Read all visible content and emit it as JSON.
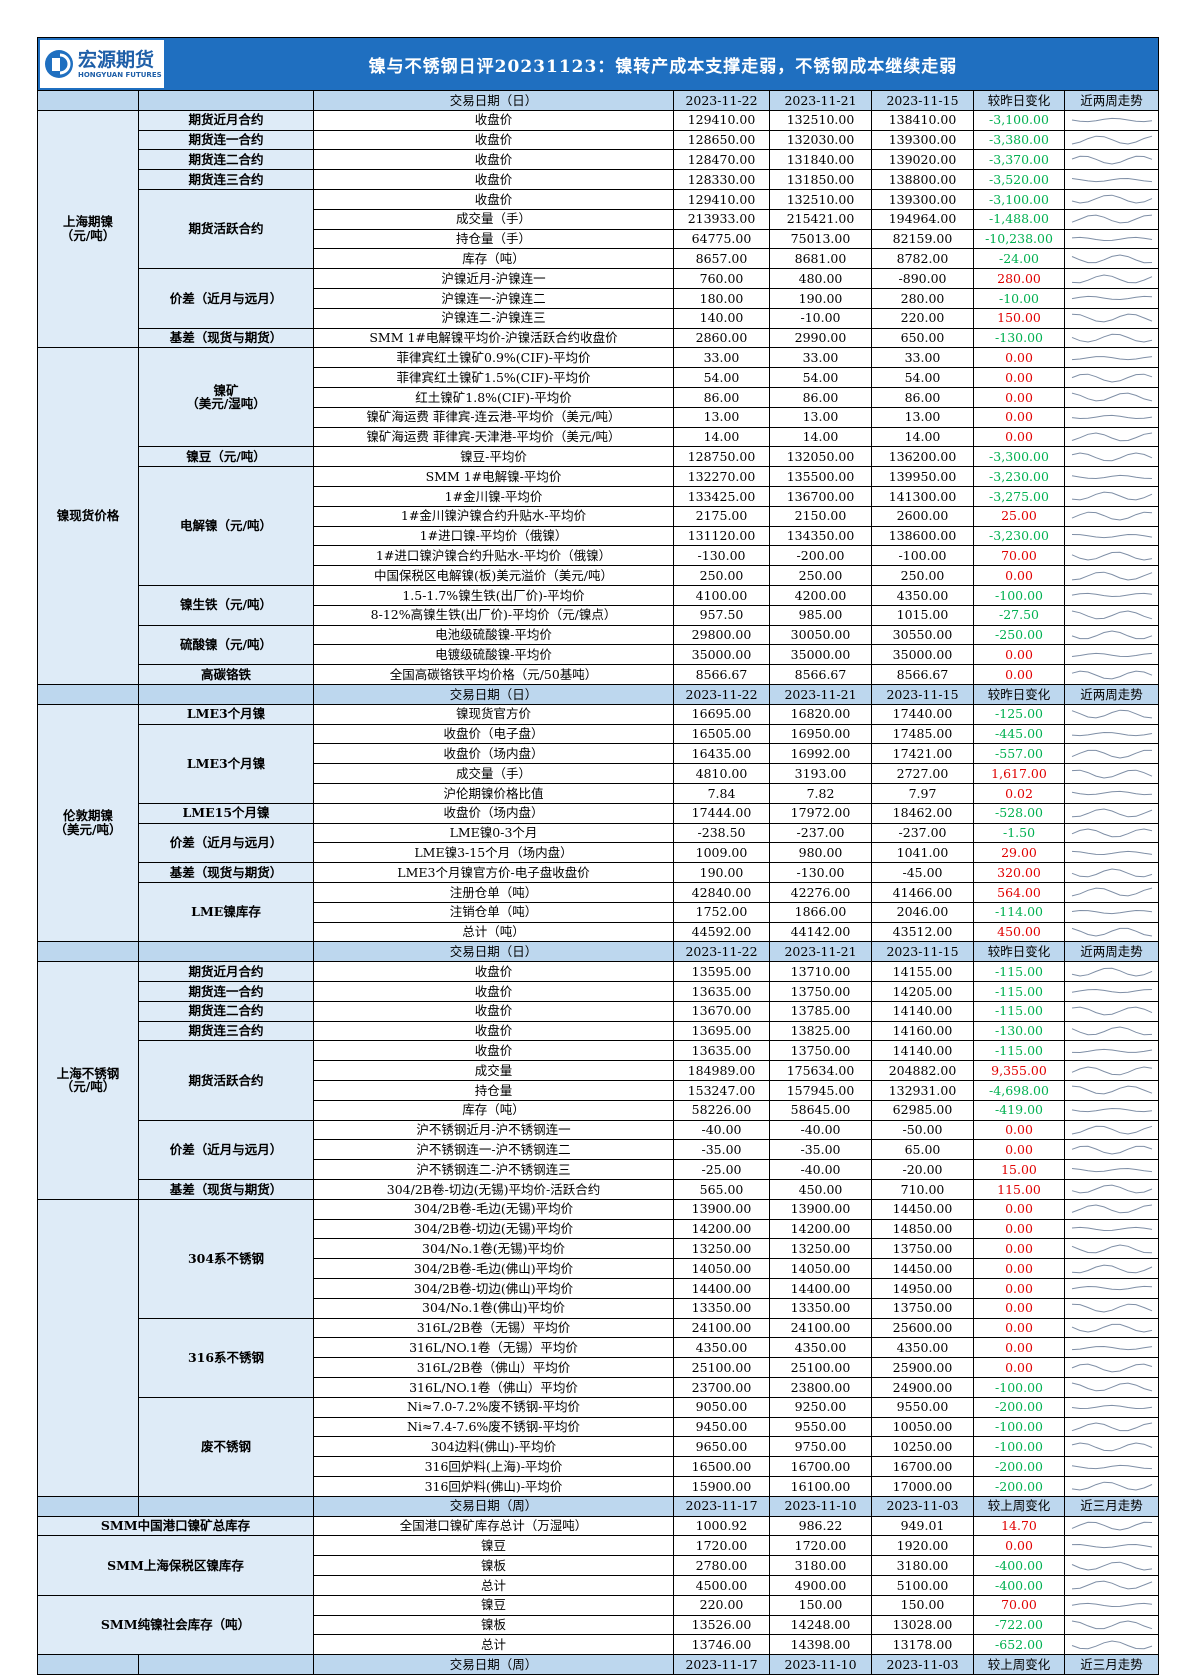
{
  "header": {
    "logo_cn": "宏源期货",
    "logo_en": "HONGYUAN FUTURES",
    "title": "镍与不锈钢日评20231123：镍转产成本支撑走弱，不锈钢成本继续走弱"
  },
  "sections": [
    {
      "header": [
        "交易日期（日）",
        "2023-11-22",
        "2023-11-21",
        "2023-11-15",
        "较昨日变化",
        "近两周走势"
      ],
      "group": [
        "上海期镍",
        "（元/吨）"
      ],
      "subgroups": [
        {
          "label": "期货近月合约",
          "rows": [
            [
              "收盘价",
              "129410.00",
              "132510.00",
              "138410.00",
              "-3,100.00"
            ]
          ]
        },
        {
          "label": "期货连一合约",
          "rows": [
            [
              "收盘价",
              "128650.00",
              "132030.00",
              "139300.00",
              "-3,380.00"
            ]
          ]
        },
        {
          "label": "期货连二合约",
          "rows": [
            [
              "收盘价",
              "128470.00",
              "131840.00",
              "139020.00",
              "-3,370.00"
            ]
          ]
        },
        {
          "label": "期货连三合约",
          "rows": [
            [
              "收盘价",
              "128330.00",
              "131850.00",
              "138800.00",
              "-3,520.00"
            ]
          ]
        },
        {
          "label": "期货活跃合约",
          "rows": [
            [
              "收盘价",
              "129410.00",
              "132510.00",
              "139300.00",
              "-3,100.00"
            ],
            [
              "成交量（手）",
              "213933.00",
              "215421.00",
              "194964.00",
              "-1,488.00"
            ],
            [
              "持仓量（手）",
              "64775.00",
              "75013.00",
              "82159.00",
              "-10,238.00"
            ],
            [
              "库存（吨）",
              "8657.00",
              "8681.00",
              "8782.00",
              "-24.00"
            ]
          ]
        },
        {
          "label": "价差（近月与远月）",
          "rows": [
            [
              "沪镍近月-沪镍连一",
              "760.00",
              "480.00",
              "-890.00",
              "280.00"
            ],
            [
              "沪镍连一-沪镍连二",
              "180.00",
              "190.00",
              "280.00",
              "-10.00"
            ],
            [
              "沪镍连二-沪镍连三",
              "140.00",
              "-10.00",
              "220.00",
              "150.00"
            ]
          ]
        },
        {
          "label": "基差（现货与期货）",
          "rows": [
            [
              "SMM 1#电解镍平均价-沪镍活跃合约收盘价",
              "2860.00",
              "2990.00",
              "650.00",
              "-130.00"
            ]
          ]
        }
      ]
    },
    {
      "group": "镍现货价格",
      "subgroups": [
        {
          "label": [
            "镍矿",
            "（美元/湿吨）"
          ],
          "rows": [
            [
              "菲律宾红土镍矿0.9%(CIF)-平均价",
              "33.00",
              "33.00",
              "33.00",
              "0.00"
            ],
            [
              "菲律宾红土镍矿1.5%(CIF)-平均价",
              "54.00",
              "54.00",
              "54.00",
              "0.00"
            ],
            [
              "红土镍矿1.8%(CIF)-平均价",
              "86.00",
              "86.00",
              "86.00",
              "0.00"
            ],
            [
              "镍矿海运费 菲律宾-连云港-平均价（美元/吨）",
              "13.00",
              "13.00",
              "13.00",
              "0.00"
            ],
            [
              "镍矿海运费 菲律宾-天津港-平均价（美元/吨）",
              "14.00",
              "14.00",
              "14.00",
              "0.00"
            ]
          ]
        },
        {
          "label": "镍豆（元/吨）",
          "rows": [
            [
              "镍豆-平均价",
              "128750.00",
              "132050.00",
              "136200.00",
              "-3,300.00"
            ]
          ]
        },
        {
          "label": "电解镍（元/吨）",
          "rows": [
            [
              "SMM 1#电解镍-平均价",
              "132270.00",
              "135500.00",
              "139950.00",
              "-3,230.00"
            ],
            [
              "1#金川镍-平均价",
              "133425.00",
              "136700.00",
              "141300.00",
              "-3,275.00"
            ],
            [
              "1#金川镍沪镍合约升贴水-平均价",
              "2175.00",
              "2150.00",
              "2600.00",
              "25.00"
            ],
            [
              "1#进口镍-平均价（俄镍）",
              "131120.00",
              "134350.00",
              "138600.00",
              "-3,230.00"
            ],
            [
              "1#进口镍沪镍合约升贴水-平均价（俄镍）",
              "-130.00",
              "-200.00",
              "-100.00",
              "70.00"
            ],
            [
              "中国保税区电解镍(板)美元溢价（美元/吨）",
              "250.00",
              "250.00",
              "250.00",
              "0.00"
            ]
          ]
        },
        {
          "label": "镍生铁（元/吨）",
          "rows": [
            [
              "1.5-1.7%镍生铁(出厂价)-平均价",
              "4100.00",
              "4200.00",
              "4350.00",
              "-100.00"
            ],
            [
              "8-12%高镍生铁(出厂价)-平均价（元/镍点）",
              "957.50",
              "985.00",
              "1015.00",
              "-27.50"
            ]
          ]
        },
        {
          "label": "硫酸镍（元/吨）",
          "rows": [
            [
              "电池级硫酸镍-平均价",
              "29800.00",
              "30050.00",
              "30550.00",
              "-250.00"
            ],
            [
              "电镀级硫酸镍-平均价",
              "35000.00",
              "35000.00",
              "35000.00",
              "0.00"
            ]
          ]
        },
        {
          "label": "高碳铬铁",
          "rows": [
            [
              "全国高碳铬铁平均价格（元/50基吨）",
              "8566.67",
              "8566.67",
              "8566.67",
              "0.00"
            ]
          ]
        }
      ]
    },
    {
      "header": [
        "交易日期（日）",
        "2023-11-22",
        "2023-11-21",
        "2023-11-15",
        "较昨日变化",
        "近两周走势"
      ],
      "group": [
        "伦敦期镍",
        "（美元/吨）"
      ],
      "subgroups": [
        {
          "label": "LME3个月镍",
          "rows": [
            [
              "镍现货官方价",
              "16695.00",
              "16820.00",
              "17440.00",
              "-125.00"
            ]
          ]
        },
        {
          "label": "LME3个月镍",
          "rows": [
            [
              "收盘价（电子盘）",
              "16505.00",
              "16950.00",
              "17485.00",
              "-445.00"
            ],
            [
              "收盘价（场内盘）",
              "16435.00",
              "16992.00",
              "17421.00",
              "-557.00"
            ],
            [
              "成交量（手）",
              "4810.00",
              "3193.00",
              "2727.00",
              "1,617.00"
            ],
            [
              "沪伦期镍价格比值",
              "7.84",
              "7.82",
              "7.97",
              "0.02"
            ]
          ]
        },
        {
          "label": "LME15个月镍",
          "rows": [
            [
              "收盘价（场内盘）",
              "17444.00",
              "17972.00",
              "18462.00",
              "-528.00"
            ]
          ]
        },
        {
          "label": "价差（近月与远月）",
          "rows": [
            [
              "LME镍0-3个月",
              "-238.50",
              "-237.00",
              "-237.00",
              "-1.50"
            ],
            [
              "LME镍3-15个月（场内盘）",
              "1009.00",
              "980.00",
              "1041.00",
              "29.00"
            ]
          ]
        },
        {
          "label": "基差（现货与期货）",
          "rows": [
            [
              "LME3个月镍官方价-电子盘收盘价",
              "190.00",
              "-130.00",
              "-45.00",
              "320.00"
            ]
          ]
        },
        {
          "label": "LME镍库存",
          "rows": [
            [
              "注册仓单（吨）",
              "42840.00",
              "42276.00",
              "41466.00",
              "564.00"
            ],
            [
              "注销仓单（吨）",
              "1752.00",
              "1866.00",
              "2046.00",
              "-114.00"
            ],
            [
              "总计（吨）",
              "44592.00",
              "44142.00",
              "43512.00",
              "450.00"
            ]
          ]
        }
      ]
    },
    {
      "header": [
        "交易日期（日）",
        "2023-11-22",
        "2023-11-21",
        "2023-11-15",
        "较昨日变化",
        "近两周走势"
      ],
      "group": [
        "上海不锈钢",
        "（元/吨）"
      ],
      "subgroups": [
        {
          "label": "期货近月合约",
          "rows": [
            [
              "收盘价",
              "13595.00",
              "13710.00",
              "14155.00",
              "-115.00"
            ]
          ]
        },
        {
          "label": "期货连一合约",
          "rows": [
            [
              "收盘价",
              "13635.00",
              "13750.00",
              "14205.00",
              "-115.00"
            ]
          ]
        },
        {
          "label": "期货连二合约",
          "rows": [
            [
              "收盘价",
              "13670.00",
              "13785.00",
              "14140.00",
              "-115.00"
            ]
          ]
        },
        {
          "label": "期货连三合约",
          "rows": [
            [
              "收盘价",
              "13695.00",
              "13825.00",
              "14160.00",
              "-130.00"
            ]
          ]
        },
        {
          "label": "期货活跃合约",
          "rows": [
            [
              "收盘价",
              "13635.00",
              "13750.00",
              "14140.00",
              "-115.00"
            ],
            [
              "成交量",
              "184989.00",
              "175634.00",
              "204882.00",
              "9,355.00"
            ],
            [
              "持仓量",
              "153247.00",
              "157945.00",
              "132931.00",
              "-4,698.00"
            ],
            [
              "库存（吨）",
              "58226.00",
              "58645.00",
              "62985.00",
              "-419.00"
            ]
          ]
        },
        {
          "label": "价差（近月与远月）",
          "rows": [
            [
              "沪不锈钢近月-沪不锈钢连一",
              "-40.00",
              "-40.00",
              "-50.00",
              "0.00"
            ],
            [
              "沪不锈钢连一-沪不锈钢连二",
              "-35.00",
              "-35.00",
              "65.00",
              "0.00"
            ],
            [
              "沪不锈钢连二-沪不锈钢连三",
              "-25.00",
              "-40.00",
              "-20.00",
              "15.00"
            ]
          ]
        },
        {
          "label": "基差（现货与期货）",
          "rows": [
            [
              "304/2B卷-切边(无锡)平均价-活跃合约",
              "565.00",
              "450.00",
              "710.00",
              "115.00"
            ]
          ]
        }
      ]
    },
    {
      "subgroups": [
        {
          "label": "304系不锈钢",
          "rows": [
            [
              "304/2B卷-毛边(无锡)平均价",
              "13900.00",
              "13900.00",
              "14450.00",
              "0.00"
            ],
            [
              "304/2B卷-切边(无锡)平均价",
              "14200.00",
              "14200.00",
              "14850.00",
              "0.00"
            ],
            [
              "304/No.1卷(无锡)平均价",
              "13250.00",
              "13250.00",
              "13750.00",
              "0.00"
            ],
            [
              "304/2B卷-毛边(佛山)平均价",
              "14050.00",
              "14050.00",
              "14450.00",
              "0.00"
            ],
            [
              "304/2B卷-切边(佛山)平均价",
              "14400.00",
              "14400.00",
              "14950.00",
              "0.00"
            ],
            [
              "304/No.1卷(佛山)平均价",
              "13350.00",
              "13350.00",
              "13750.00",
              "0.00"
            ]
          ]
        },
        {
          "label": "316系不锈钢",
          "rows": [
            [
              "316L/2B卷（无锡）平均价",
              "24100.00",
              "24100.00",
              "25600.00",
              "0.00"
            ],
            [
              "316L/NO.1卷（无锡）平均价",
              "4350.00",
              "4350.00",
              "4350.00",
              "0.00"
            ],
            [
              "316L/2B卷（佛山）平均价",
              "25100.00",
              "25100.00",
              "25900.00",
              "0.00"
            ],
            [
              "316L/NO.1卷（佛山）平均价",
              "23700.00",
              "23800.00",
              "24900.00",
              "-100.00"
            ]
          ]
        },
        {
          "label": "废不锈钢",
          "rows": [
            [
              "Ni≈7.0-7.2%废不锈钢-平均价",
              "9050.00",
              "9250.00",
              "9550.00",
              "-200.00"
            ],
            [
              "Ni≈7.4-7.6%废不锈钢-平均价",
              "9450.00",
              "9550.00",
              "10050.00",
              "-100.00"
            ],
            [
              "304边料(佛山)-平均价",
              "9650.00",
              "9750.00",
              "10250.00",
              "-100.00"
            ],
            [
              "316回炉料(上海)-平均价",
              "16500.00",
              "16700.00",
              "16700.00",
              "-200.00"
            ],
            [
              "316回炉料(佛山)-平均价",
              "15900.00",
              "16100.00",
              "17000.00",
              "-200.00"
            ]
          ]
        }
      ]
    },
    {
      "header": [
        "交易日期（周）",
        "2023-11-17",
        "2023-11-10",
        "2023-11-03",
        "较上周变化",
        "近三月走势"
      ],
      "merged_labels": true,
      "subgroups": [
        {
          "label": "SMM中国港口镍矿总库存",
          "rows": [
            [
              "全国港口镍矿库存总计（万湿吨）",
              "1000.92",
              "986.22",
              "949.01",
              "14.70"
            ]
          ]
        },
        {
          "label": "SMM上海保税区镍库存",
          "rows": [
            [
              "镍豆",
              "1720.00",
              "1720.00",
              "1920.00",
              "0.00"
            ],
            [
              "镍板",
              "2780.00",
              "3180.00",
              "3180.00",
              "-400.00"
            ],
            [
              "总计",
              "4500.00",
              "4900.00",
              "5100.00",
              "-400.00"
            ]
          ]
        },
        {
          "label": "SMM纯镍社会库存（吨）",
          "rows": [
            [
              "镍豆",
              "220.00",
              "150.00",
              "150.00",
              "70.00"
            ],
            [
              "镍板",
              "13526.00",
              "14248.00",
              "13028.00",
              "-722.00"
            ],
            [
              "总计",
              "13746.00",
              "14398.00",
              "13178.00",
              "-652.00"
            ]
          ]
        }
      ]
    },
    {
      "header": [
        "交易日期（周）",
        "2023-11-17",
        "2023-11-10",
        "2023-11-03",
        "较上周变化",
        "近三月走势"
      ],
      "subgroups": []
    }
  ]
}
